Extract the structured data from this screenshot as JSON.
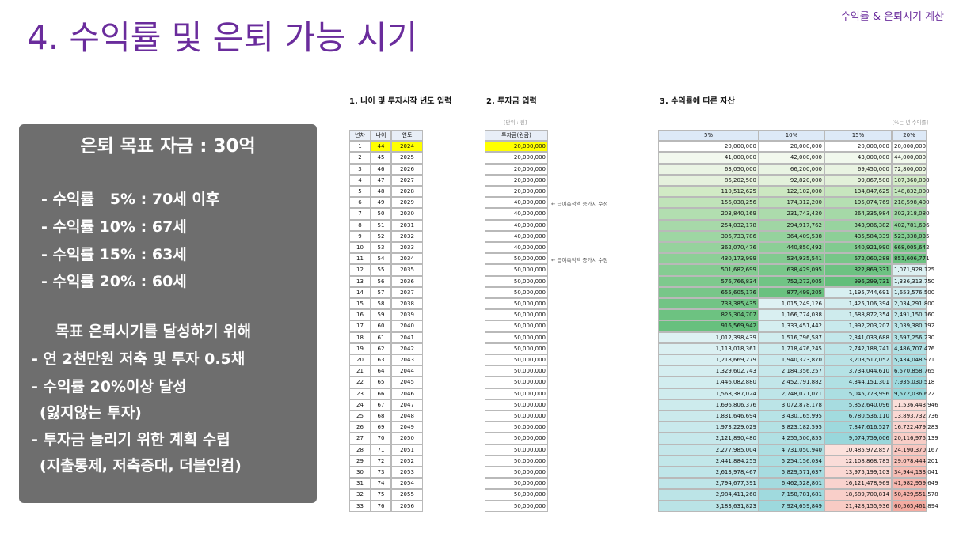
{
  "header": {
    "title": "4. 수익률 및 은퇴 가능 시기",
    "tag": "수익률 & 은퇴시기 계산"
  },
  "goal_box": {
    "title": "은퇴 목표 자금 : 30억",
    "rates": [
      "- 수익률   5% : 70세 이후",
      "- 수익률 10% : 67세",
      "- 수익률 15% : 63세",
      "- 수익률 20% : 60세"
    ],
    "plan_title": "목표 은퇴시기를 달성하기 위해",
    "plan": [
      "- 연 2천만원 저축 및 투자 0.5채",
      "- 수익률 20%이상 달성",
      "(잃지않는 투자)",
      "- 투자금 늘리기 위한 계획 수립",
      "(지출통제, 저축증대, 더블인컴)"
    ]
  },
  "table": {
    "sections": [
      "1. 나이 및 투자시작 년도 입력",
      "2. 투자금 입력",
      "3. 수익률에 따른 자산"
    ],
    "unit_note": "[단위 : 원]",
    "rate_note": "[%는 년 수익률]",
    "columns": [
      "년차",
      "나이",
      "연도",
      "투자금(원금)",
      "5%",
      "10%",
      "15%",
      "20%"
    ],
    "rows": [
      [
        "1",
        "44",
        "2024",
        "20,000,000",
        "20,000,000",
        "20,000,000",
        "20,000,000",
        "20,000,000"
      ],
      [
        "2",
        "45",
        "2025",
        "20,000,000",
        "41,000,000",
        "42,000,000",
        "43,000,000",
        "44,000,000"
      ],
      [
        "3",
        "46",
        "2026",
        "20,000,000",
        "63,050,000",
        "66,200,000",
        "69,450,000",
        "72,800,000"
      ],
      [
        "4",
        "47",
        "2027",
        "20,000,000",
        "86,202,500",
        "92,820,000",
        "99,867,500",
        "107,360,000"
      ],
      [
        "5",
        "48",
        "2028",
        "20,000,000",
        "110,512,625",
        "122,102,000",
        "134,847,625",
        "148,832,000"
      ],
      [
        "6",
        "49",
        "2029",
        "40,000,000",
        "156,038,256",
        "174,312,200",
        "195,074,769",
        "218,598,400"
      ],
      [
        "7",
        "50",
        "2030",
        "40,000,000",
        "203,840,169",
        "231,743,420",
        "264,335,984",
        "302,318,080"
      ],
      [
        "8",
        "51",
        "2031",
        "40,000,000",
        "254,032,178",
        "294,917,762",
        "343,986,382",
        "402,781,696"
      ],
      [
        "9",
        "52",
        "2032",
        "40,000,000",
        "306,733,786",
        "364,409,538",
        "435,584,339",
        "523,338,035"
      ],
      [
        "10",
        "53",
        "2033",
        "40,000,000",
        "362,070,476",
        "440,850,492",
        "540,921,990",
        "668,005,642"
      ],
      [
        "11",
        "54",
        "2034",
        "50,000,000",
        "430,173,999",
        "534,935,541",
        "672,060,288",
        "851,606,771"
      ],
      [
        "12",
        "55",
        "2035",
        "50,000,000",
        "501,682,699",
        "638,429,095",
        "822,869,331",
        "1,071,928,125"
      ],
      [
        "13",
        "56",
        "2036",
        "50,000,000",
        "576,766,834",
        "752,272,005",
        "996,299,731",
        "1,336,313,750"
      ],
      [
        "14",
        "57",
        "2037",
        "50,000,000",
        "655,605,176",
        "877,499,205",
        "1,195,744,691",
        "1,653,576,500"
      ],
      [
        "15",
        "58",
        "2038",
        "50,000,000",
        "738,385,435",
        "1,015,249,126",
        "1,425,106,394",
        "2,034,291,800"
      ],
      [
        "16",
        "59",
        "2039",
        "50,000,000",
        "825,304,707",
        "1,166,774,038",
        "1,688,872,354",
        "2,491,150,160"
      ],
      [
        "17",
        "60",
        "2040",
        "50,000,000",
        "916,569,942",
        "1,333,451,442",
        "1,992,203,207",
        "3,039,380,192"
      ],
      [
        "18",
        "61",
        "2041",
        "50,000,000",
        "1,012,398,439",
        "1,516,796,587",
        "2,341,033,688",
        "3,697,256,230"
      ],
      [
        "19",
        "62",
        "2042",
        "50,000,000",
        "1,113,018,361",
        "1,718,476,245",
        "2,742,188,741",
        "4,486,707,476"
      ],
      [
        "20",
        "63",
        "2043",
        "50,000,000",
        "1,218,669,279",
        "1,940,323,870",
        "3,203,517,052",
        "5,434,048,971"
      ],
      [
        "21",
        "64",
        "2044",
        "50,000,000",
        "1,329,602,743",
        "2,184,356,257",
        "3,734,044,610",
        "6,570,858,765"
      ],
      [
        "22",
        "65",
        "2045",
        "50,000,000",
        "1,446,082,880",
        "2,452,791,882",
        "4,344,151,301",
        "7,935,030,518"
      ],
      [
        "23",
        "66",
        "2046",
        "50,000,000",
        "1,568,387,024",
        "2,748,071,071",
        "5,045,773,996",
        "9,572,036,622"
      ],
      [
        "24",
        "67",
        "2047",
        "50,000,000",
        "1,696,806,376",
        "3,072,878,178",
        "5,852,640,096",
        "11,536,443,946"
      ],
      [
        "25",
        "68",
        "2048",
        "50,000,000",
        "1,831,646,694",
        "3,430,165,995",
        "6,780,536,110",
        "13,893,732,736"
      ],
      [
        "26",
        "69",
        "2049",
        "50,000,000",
        "1,973,229,029",
        "3,823,182,595",
        "7,847,616,527",
        "16,722,479,283"
      ],
      [
        "27",
        "70",
        "2050",
        "50,000,000",
        "2,121,890,480",
        "4,255,500,855",
        "9,074,759,006",
        "20,116,975,139"
      ],
      [
        "28",
        "71",
        "2051",
        "50,000,000",
        "2,277,985,004",
        "4,731,050,940",
        "10,485,972,857",
        "24,190,370,167"
      ],
      [
        "29",
        "72",
        "2052",
        "50,000,000",
        "2,441,884,255",
        "5,254,156,034",
        "12,108,868,785",
        "29,078,444,201"
      ],
      [
        "30",
        "73",
        "2053",
        "50,000,000",
        "2,613,978,467",
        "5,829,571,637",
        "13,975,199,103",
        "34,944,133,041"
      ],
      [
        "31",
        "74",
        "2054",
        "50,000,000",
        "2,794,677,391",
        "6,462,528,801",
        "16,121,478,969",
        "41,982,959,649"
      ],
      [
        "32",
        "75",
        "2055",
        "50,000,000",
        "2,984,411,260",
        "7,158,781,681",
        "18,589,700,814",
        "50,429,551,578"
      ],
      [
        "33",
        "76",
        "2056",
        "50,000,000",
        "3,183,631,823",
        "7,924,659,849",
        "21,428,155,936",
        "60,565,461,894"
      ]
    ],
    "row_notes": [
      null,
      null,
      null,
      null,
      null,
      "← 급여축적액 증가시 수정",
      null,
      null,
      null,
      null,
      "← 급여축적액 증가시 수정",
      null,
      null,
      null,
      null,
      null,
      null,
      null,
      null,
      null,
      null,
      null,
      null,
      null,
      null,
      null,
      null,
      null,
      null,
      null,
      null,
      null,
      null
    ]
  }
}
